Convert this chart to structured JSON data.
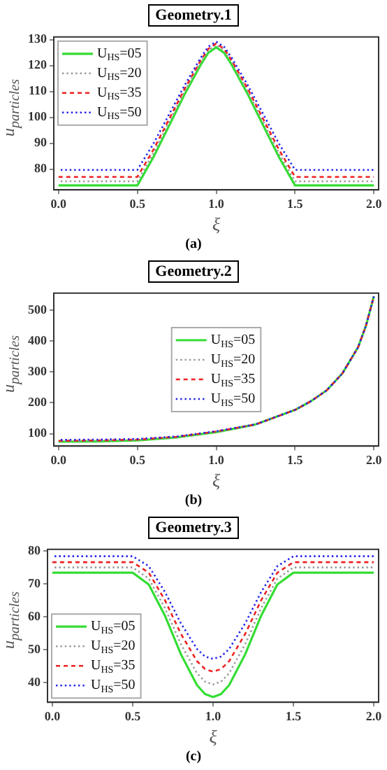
{
  "chart_data": [
    {
      "type": "line",
      "title": "Geometry.1",
      "xlabel": "ξ",
      "ylabel": "u$_{particles}$",
      "annotations": [
        "(a)"
      ],
      "legend": "top left",
      "grid": false,
      "x": [
        0,
        0.5,
        0.6,
        0.7,
        0.8,
        0.9,
        0.95,
        1,
        1.05,
        1.1,
        1.2,
        1.3,
        1.4,
        1.5,
        2
      ],
      "xlim": [
        -0.03,
        2.03
      ],
      "xticks": [
        {
          "value": 0,
          "label": "0.0"
        },
        {
          "value": 0.5,
          "label": "0.5"
        },
        {
          "value": 1,
          "label": "1.0"
        },
        {
          "value": 1.5,
          "label": "1.5"
        },
        {
          "value": 2,
          "label": "2.0"
        }
      ],
      "ylim": [
        72,
        131
      ],
      "yticks": [
        80,
        90,
        100,
        110,
        120,
        130
      ],
      "series": [
        {
          "name": "U$_{HS}$=05",
          "color": "#33dd33",
          "line_style": "solid",
          "values": [
            73.7,
            73.7,
            84.4,
            96.6,
            108.9,
            120.1,
            124.9,
            127,
            124.9,
            120.1,
            108.9,
            96.6,
            84.4,
            73.7,
            73.7
          ]
        },
        {
          "name": "U$_{HS}$=20",
          "color": "#999999",
          "line_style": "dotted",
          "values": [
            75.3,
            75.3,
            85.8,
            98,
            110.1,
            121.2,
            125.9,
            128,
            125.9,
            121.2,
            110.1,
            98,
            85.8,
            75.3,
            75.3
          ]
        },
        {
          "name": "U$_{HS}$=35",
          "color": "#ee2222",
          "line_style": "dashed",
          "values": [
            77,
            77,
            87.3,
            99.1,
            111,
            121.8,
            126.4,
            128.5,
            126.4,
            121.8,
            111,
            99.1,
            87.3,
            77,
            77
          ]
        },
        {
          "name": "U$_{HS}$=50",
          "color": "#2222ee",
          "line_style": "dotted",
          "values": [
            79.7,
            79.7,
            89.6,
            101,
            112.4,
            122.8,
            127.2,
            129.2,
            127.2,
            122.8,
            112.4,
            101,
            89.6,
            79.7,
            79.7
          ]
        }
      ]
    },
    {
      "type": "line",
      "title": "Geometry.2",
      "xlabel": "ξ",
      "ylabel": "u$_{particles}$",
      "annotations": [
        "(b)"
      ],
      "legend": "center",
      "grid": false,
      "x": [
        0,
        0.25,
        0.5,
        0.75,
        1,
        1.25,
        1.5,
        1.6,
        1.7,
        1.8,
        1.9,
        1.95,
        2
      ],
      "xlim": [
        -0.03,
        2.03
      ],
      "xticks": [
        {
          "value": 0,
          "label": "0.0"
        },
        {
          "value": 0.5,
          "label": "0.5"
        },
        {
          "value": 1,
          "label": "1.0"
        },
        {
          "value": 1.5,
          "label": "1.5"
        },
        {
          "value": 2,
          "label": "2.0"
        }
      ],
      "ylim": [
        60,
        555
      ],
      "yticks": [
        100,
        200,
        300,
        400,
        500
      ],
      "series": [
        {
          "name": "U$_{HS}$=05",
          "color": "#33dd33",
          "line_style": "solid",
          "values": [
            74,
            75,
            78,
            88,
            105,
            130,
            177,
            205,
            240,
            295,
            380,
            450,
            545
          ]
        },
        {
          "name": "U$_{HS}$=20",
          "color": "#999999",
          "line_style": "dotted",
          "values": [
            76,
            77,
            80,
            89,
            106,
            130,
            177,
            205,
            240,
            295,
            380,
            450,
            545
          ]
        },
        {
          "name": "U$_{HS}$=35",
          "color": "#ee2222",
          "line_style": "dashed",
          "values": [
            77,
            78,
            81,
            90,
            107,
            130,
            177,
            205,
            240,
            295,
            380,
            450,
            545
          ]
        },
        {
          "name": "U$_{HS}$=50",
          "color": "#2222ee",
          "line_style": "dotted",
          "values": [
            80,
            81,
            83,
            91,
            108,
            130,
            177,
            205,
            240,
            295,
            380,
            450,
            545
          ]
        }
      ]
    },
    {
      "type": "line",
      "title": "Geometry.3",
      "xlabel": "ξ",
      "ylabel": "u$_{particles}$",
      "annotations": [
        "(c)"
      ],
      "legend": "bottom left",
      "grid": false,
      "x": [
        0,
        0.5,
        0.6,
        0.7,
        0.8,
        0.9,
        0.95,
        1,
        1.05,
        1.1,
        1.2,
        1.3,
        1.4,
        1.5,
        2
      ],
      "xlim": [
        -0.03,
        2.03
      ],
      "xticks": [
        {
          "value": 0,
          "label": "0.0"
        },
        {
          "value": 0.5,
          "label": "0.5"
        },
        {
          "value": 1,
          "label": "1.0"
        },
        {
          "value": 1.5,
          "label": "1.5"
        },
        {
          "value": 2,
          "label": "2.0"
        }
      ],
      "ylim": [
        34,
        80.5
      ],
      "yticks": [
        40,
        50,
        60,
        70,
        80
      ],
      "series": [
        {
          "name": "U$_{HS}$=05",
          "color": "#33dd33",
          "line_style": "solid",
          "values": [
            73.4,
            73.4,
            69.8,
            60.4,
            48.6,
            39.2,
            36.5,
            35.6,
            36.5,
            39.2,
            48.6,
            60.4,
            69.8,
            73.4,
            73.4
          ]
        },
        {
          "name": "U$_{HS}$=20",
          "color": "#999999",
          "line_style": "dotted",
          "values": [
            75,
            75,
            71.6,
            62.7,
            51.7,
            42.8,
            40.3,
            39.4,
            40.3,
            42.8,
            51.7,
            62.7,
            71.6,
            75,
            75
          ]
        },
        {
          "name": "U$_{HS}$=35",
          "color": "#ee2222",
          "line_style": "dashed",
          "values": [
            76.6,
            76.6,
            73.4,
            65.1,
            54.8,
            46.5,
            44.1,
            43.3,
            44.1,
            46.5,
            54.8,
            65.1,
            73.4,
            76.6,
            76.6
          ]
        },
        {
          "name": "U$_{HS}$=50",
          "color": "#2222ee",
          "line_style": "dotted",
          "values": [
            78.4,
            78.4,
            75.4,
            67.6,
            58,
            50.2,
            47.9,
            47.2,
            47.9,
            50.2,
            58,
            67.6,
            75.4,
            78.4,
            78.4
          ]
        }
      ]
    }
  ]
}
